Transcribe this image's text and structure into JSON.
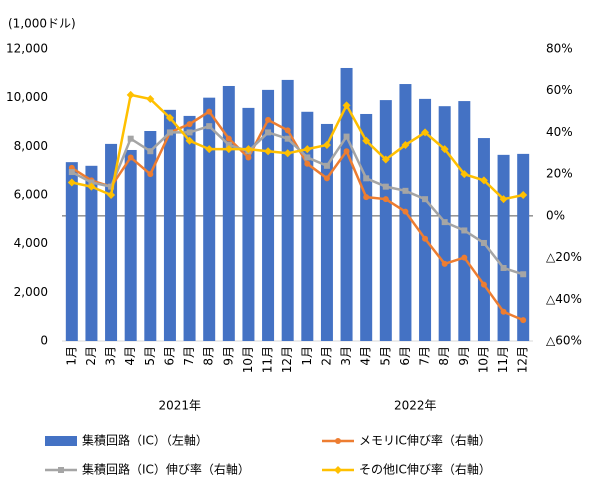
{
  "chart_data": {
    "type": "bar-line",
    "y_label": "(1,000ドル)",
    "categories": [
      "1月",
      "2月",
      "3月",
      "4月",
      "5月",
      "6月",
      "7月",
      "8月",
      "9月",
      "10月",
      "11月",
      "12月",
      "1月",
      "2月",
      "3月",
      "4月",
      "5月",
      "6月",
      "7月",
      "8月",
      "9月",
      "10月",
      "11月",
      "12月"
    ],
    "year_labels": [
      "2021年",
      "2022年"
    ],
    "ylim": [
      0,
      12000
    ],
    "yticks": [
      0,
      {
        "value": 2000,
        "label": "2,000"
      },
      {
        "value": 4000,
        "label": "4,000"
      },
      {
        "value": 6000,
        "label": "6,000"
      },
      {
        "value": 8000,
        "label": "8,000"
      },
      {
        "value": 10000,
        "label": "10,000"
      },
      {
        "value": 12000,
        "label": "12,000"
      }
    ],
    "y2lim": [
      -60,
      80
    ],
    "y2ticks": [
      {
        "value": -60,
        "label": "△60%"
      },
      {
        "value": -40,
        "label": "△40%"
      },
      {
        "value": -20,
        "label": "△20%"
      },
      {
        "value": 0,
        "label": "0%"
      },
      {
        "value": 20,
        "label": "20%"
      },
      {
        "value": 40,
        "label": "40%"
      },
      {
        "value": 60,
        "label": "60%"
      },
      {
        "value": 80,
        "label": "80%"
      }
    ],
    "series": [
      {
        "name": "集積回路（IC）（左軸）",
        "type": "bar",
        "color": "#4472c4",
        "values": [
          7350,
          7200,
          8100,
          7850,
          8630,
          9500,
          9250,
          10000,
          10480,
          9580,
          10320,
          10730,
          9420,
          8920,
          11220,
          9330,
          9900,
          10560,
          9950,
          9650,
          9860,
          8340,
          7650,
          7690
        ]
      },
      {
        "name": "メモリIC伸び率（右軸）",
        "type": "line",
        "axis": "y2",
        "color": "#ed7d31",
        "marker": "circle",
        "values": [
          23,
          17,
          14,
          28,
          20,
          40,
          44,
          50,
          37,
          28,
          46,
          41,
          25,
          18,
          31,
          9,
          8,
          2,
          -11,
          -23,
          -20,
          -33,
          -46,
          -50
        ]
      },
      {
        "name": "集積回路（IC）伸び率（右軸）",
        "type": "line",
        "axis": "y2",
        "color": "#a5a5a5",
        "marker": "square",
        "values": [
          21,
          16,
          14,
          37,
          31,
          40,
          40,
          43,
          34,
          31,
          40,
          37,
          28,
          24,
          38,
          18,
          14,
          12,
          8,
          -3,
          -7,
          -13,
          -25,
          -28
        ]
      },
      {
        "name": "その他IC伸び率（右軸）",
        "type": "line",
        "axis": "y2",
        "color": "#ffc000",
        "marker": "diamond",
        "values": [
          16,
          14,
          10,
          58,
          56,
          47,
          36,
          32,
          32,
          32,
          31,
          30,
          32,
          34,
          53,
          36,
          27,
          34,
          40,
          32,
          20,
          17,
          8,
          10
        ]
      }
    ]
  }
}
